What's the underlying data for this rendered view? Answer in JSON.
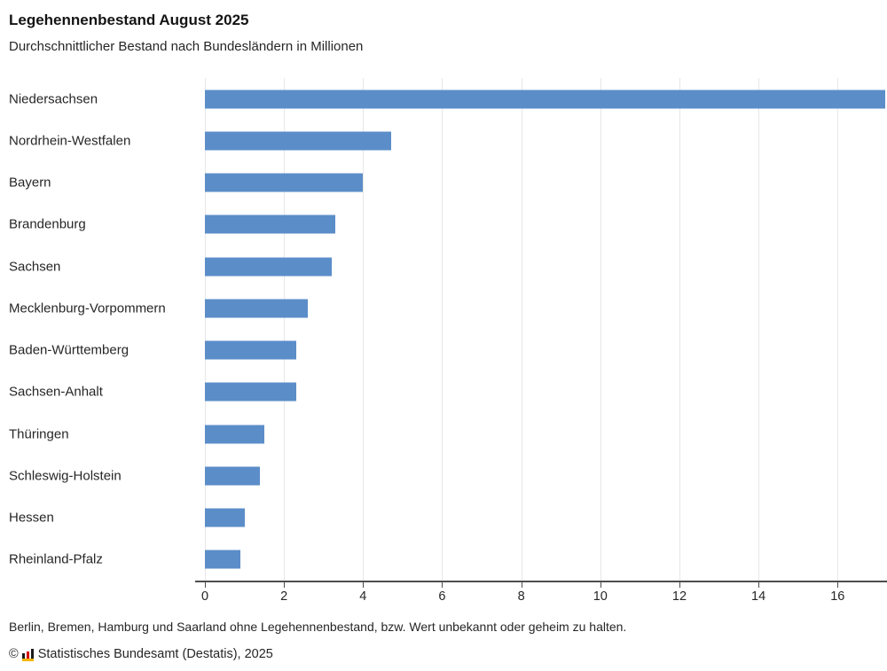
{
  "header": {
    "title": "Legehennenbestand August 2025",
    "subtitle": "Durchschnittlicher Bestand nach Bundesländern in Millionen"
  },
  "chart_data": {
    "type": "bar",
    "orientation": "horizontal",
    "title": "Legehennenbestand August 2025",
    "subtitle": "Durchschnittlicher Bestand nach Bundesländern in Millionen",
    "unit": "Millionen",
    "categories": [
      "Niedersachsen",
      "Nordrhein-Westfalen",
      "Bayern",
      "Brandenburg",
      "Sachsen",
      "Mecklenburg-Vorpommern",
      "Baden-Württemberg",
      "Sachsen-Anhalt",
      "Thüringen",
      "Schleswig-Holstein",
      "Hessen",
      "Rheinland-Pfalz"
    ],
    "values": [
      17.2,
      4.7,
      4.0,
      3.3,
      3.2,
      2.6,
      2.3,
      2.3,
      1.5,
      1.4,
      1.0,
      0.9
    ],
    "xlabel": "",
    "ylabel": "",
    "xlim": [
      0,
      17.25
    ],
    "xticks": [
      0,
      2,
      4,
      6,
      8,
      10,
      12,
      14,
      16
    ],
    "grid": true,
    "legend": "none"
  },
  "footer": {
    "note": "Berlin, Bremen, Hamburg und Saarland ohne Legehennenbestand, bzw. Wert unbekannt oder geheim zu halten.",
    "copyright_prefix": "©",
    "source": "Statistisches Bundesamt (Destatis), 2025"
  },
  "colors": {
    "bar": "#5B8DC9",
    "grid": "#e7e7e7",
    "axis": "#4d4d4d",
    "text": "#262626",
    "logo_black": "#1a1a1a",
    "logo_red": "#d40000",
    "logo_yellow": "#f7b500"
  }
}
